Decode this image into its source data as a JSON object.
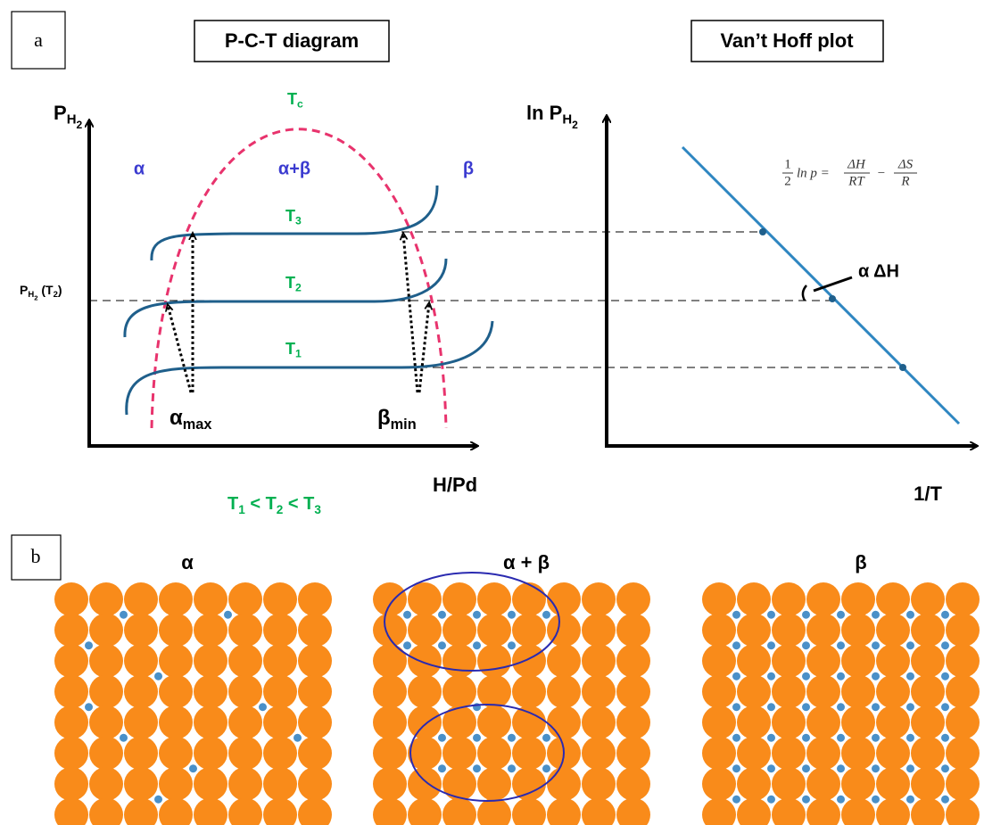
{
  "panel_a": {
    "label": "a",
    "titles": [
      "P-C-T diagram",
      "Van’t Hoff plot"
    ],
    "pct": {
      "y_axis": [
        {
          "text": "P",
          "pos": "base"
        },
        {
          "text": "H",
          "pos": "sub"
        },
        {
          "text": "2",
          "pos": "subsub"
        }
      ],
      "x_axis": "H/Pd",
      "critical": [
        {
          "text": "T",
          "pos": "base"
        },
        {
          "text": "c",
          "pos": "sub"
        }
      ],
      "phases": [
        "α",
        "α+β",
        "β"
      ],
      "isotherms": [
        [
          {
            "text": "T",
            "pos": "base"
          },
          {
            "text": "3",
            "pos": "sub"
          }
        ],
        [
          {
            "text": "T",
            "pos": "base"
          },
          {
            "text": "2",
            "pos": "sub"
          }
        ],
        [
          {
            "text": "T",
            "pos": "base"
          },
          {
            "text": "1",
            "pos": "sub"
          }
        ]
      ],
      "pressure_label": [
        {
          "text": "P",
          "pos": "base"
        },
        {
          "text": "H",
          "pos": "sub"
        },
        {
          "text": "2",
          "pos": "subsub"
        },
        {
          "text": " (T",
          "pos": "base"
        },
        {
          "text": "2",
          "pos": "sub"
        },
        {
          "text": ")",
          "pos": "base"
        }
      ],
      "alpha_max": [
        {
          "text": "α",
          "pos": "base"
        },
        {
          "text": "max",
          "pos": "sub"
        }
      ],
      "beta_min": [
        {
          "text": "β",
          "pos": "base"
        },
        {
          "text": "min",
          "pos": "sub"
        }
      ],
      "ordering": [
        {
          "text": "T",
          "pos": "base"
        },
        {
          "text": "1",
          "pos": "sub"
        },
        {
          "text": " < T",
          "pos": "base"
        },
        {
          "text": "2",
          "pos": "sub"
        },
        {
          "text": " < T",
          "pos": "base"
        },
        {
          "text": "3",
          "pos": "sub"
        }
      ]
    },
    "vant_hoff": {
      "y_axis": [
        {
          "text": "ln P",
          "pos": "base"
        },
        {
          "text": "H",
          "pos": "sub"
        },
        {
          "text": "2",
          "pos": "subsub"
        }
      ],
      "x_axis": "1/T",
      "equation": {
        "half": [
          "1",
          "2"
        ],
        "lhs": "ln p =",
        "term1": [
          "ΔH",
          "RT"
        ],
        "minus": "−",
        "term2": [
          "ΔS",
          "R"
        ]
      },
      "slope_label": "α ΔH"
    }
  },
  "panel_b": {
    "label": "b",
    "titles": [
      "α",
      "α + β",
      "β"
    ]
  }
}
